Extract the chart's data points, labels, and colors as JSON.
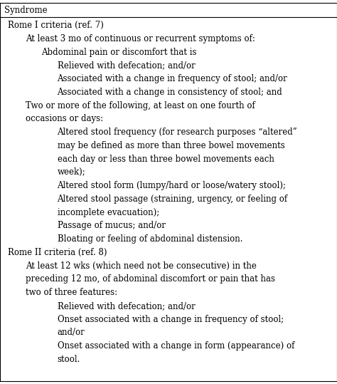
{
  "background_color": "#ffffff",
  "font_size": 8.5,
  "font_family": "DejaVu Serif",
  "header_text": "Syndrome",
  "lines": [
    {
      "text": "Rome I criteria (ref. 7)",
      "indent": 0
    },
    {
      "text": "At least 3 mo of continuous or recurrent symptoms of:",
      "indent": 1
    },
    {
      "text": "Abdominal pain or discomfort that is",
      "indent": 2
    },
    {
      "text": "Relieved with defecation; and/or",
      "indent": 3
    },
    {
      "text": "Associated with a change in frequency of stool; and/or",
      "indent": 3
    },
    {
      "text": "Associated with a change in consistency of stool; and",
      "indent": 3
    },
    {
      "text": "Two or more of the following, at least on one fourth of",
      "indent": 1
    },
    {
      "text": "occasions or days:",
      "indent": 1
    },
    {
      "text": "Altered stool frequency (for research purposes “altered”",
      "indent": 3
    },
    {
      "text": "may be defined as more than three bowel movements",
      "indent": 3
    },
    {
      "text": "each day or less than three bowel movements each",
      "indent": 3
    },
    {
      "text": "week);",
      "indent": 3
    },
    {
      "text": "Altered stool form (lumpy/hard or loose/watery stool);",
      "indent": 3
    },
    {
      "text": "Altered stool passage (straining, urgency, or feeling of",
      "indent": 3
    },
    {
      "text": "incomplete evacuation);",
      "indent": 3
    },
    {
      "text": "Passage of mucus; and/or",
      "indent": 3
    },
    {
      "text": "Bloating or feeling of abdominal distension.",
      "indent": 3
    },
    {
      "text": "Rome II criteria (ref. 8)",
      "indent": 0
    },
    {
      "text": "At least 12 wks (which need not be consecutive) in the",
      "indent": 1
    },
    {
      "text": "preceding 12 mo, of abdominal discomfort or pain that has",
      "indent": 1
    },
    {
      "text": "two of three features:",
      "indent": 1
    },
    {
      "text": "Relieved with defecation; and/or",
      "indent": 3
    },
    {
      "text": "Onset associated with a change in frequency of stool;",
      "indent": 3
    },
    {
      "text": "and/or",
      "indent": 3
    },
    {
      "text": "Onset associated with a change in form (appearance) of",
      "indent": 3
    },
    {
      "text": "stool.",
      "indent": 3
    }
  ],
  "indent_pts": [
    4,
    22,
    38,
    54
  ],
  "figsize": [
    4.74,
    5.39
  ],
  "dpi": 100
}
